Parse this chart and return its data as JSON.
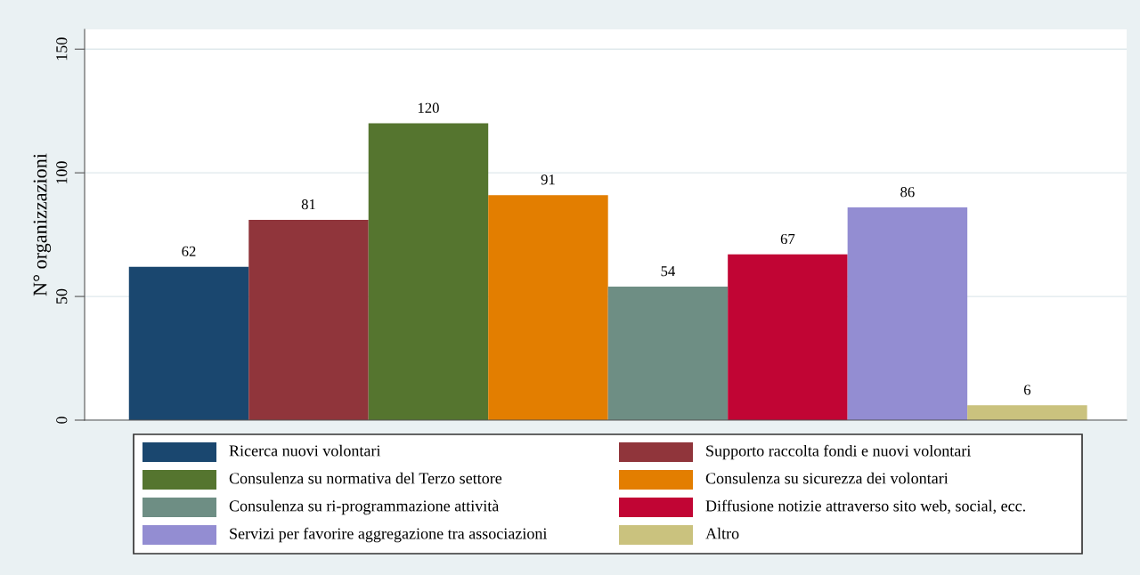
{
  "chart_data": {
    "type": "bar",
    "ylabel": "N° organizzazioni",
    "categories": [
      null,
      null,
      null,
      null,
      null,
      null,
      null,
      null
    ],
    "series": [
      {
        "name": "Ricerca nuovi volontari",
        "color": "#1a476f",
        "values": [
          62,
          null,
          null,
          null,
          null,
          null,
          null,
          null
        ]
      },
      {
        "name": "Supporto raccolta fondi e nuovi volontari",
        "color": "#90353b",
        "values": [
          null,
          81,
          null,
          null,
          null,
          null,
          null,
          null
        ]
      },
      {
        "name": "Consulenza su normativa del Terzo settore",
        "color": "#55752f",
        "values": [
          null,
          null,
          120,
          null,
          null,
          null,
          null,
          null
        ]
      },
      {
        "name": "Consulenza su sicurezza dei volontari",
        "color": "#e37e00",
        "values": [
          null,
          null,
          null,
          91,
          null,
          null,
          null,
          null
        ]
      },
      {
        "name": "Consulenza su ri-programmazione attività",
        "color": "#6e8e84",
        "values": [
          null,
          null,
          null,
          null,
          54,
          null,
          null,
          null
        ]
      },
      {
        "name": "Diffusione notizie attraverso sito web, social, ecc.",
        "color": "#c10534",
        "values": [
          null,
          null,
          null,
          null,
          null,
          67,
          null,
          null
        ]
      },
      {
        "name": "Servizi per favorire aggregazione tra associazioni",
        "color": "#938dd2",
        "values": [
          null,
          null,
          null,
          null,
          null,
          null,
          86,
          null
        ]
      },
      {
        "name": "Altro",
        "color": "#cac27e",
        "values": [
          null,
          null,
          null,
          null,
          null,
          null,
          null,
          6
        ]
      }
    ],
    "ylim": [
      0,
      158
    ],
    "yticks": [
      0,
      50,
      100,
      150
    ],
    "grid": "y",
    "data_labels": true,
    "legend": "bottom"
  }
}
